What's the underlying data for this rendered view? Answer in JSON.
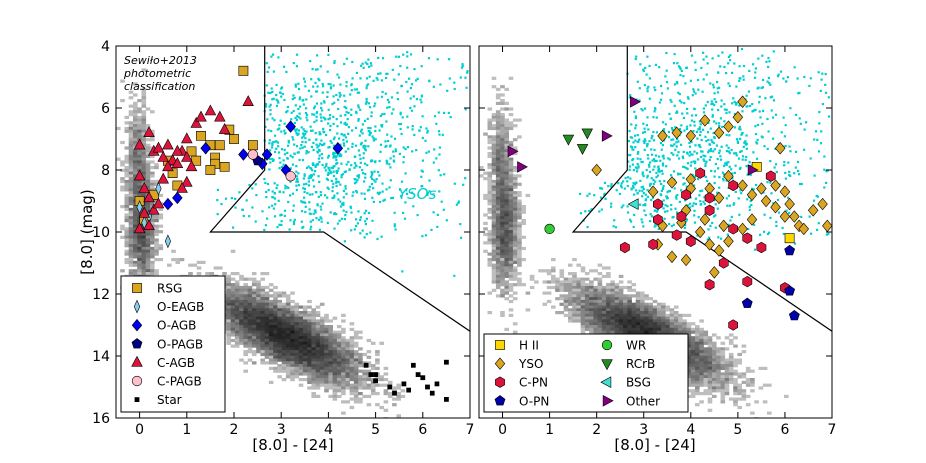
{
  "chart_data": [
    {
      "type": "scatter",
      "panel": "left",
      "xlabel": "[8.0] - [24]",
      "ylabel": "[8.0] (mag)",
      "xlim": [
        -0.5,
        7
      ],
      "ylim": [
        16,
        4
      ],
      "xticks": [
        0,
        1,
        2,
        3,
        4,
        5,
        6,
        7
      ],
      "yticks": [
        4,
        6,
        8,
        10,
        12,
        14,
        16
      ],
      "annotation_lines": [
        "Sewiło+2013",
        "photometric",
        "classification"
      ],
      "region_label": "YSOs",
      "legend_position": "lower-left",
      "series": [
        {
          "name": "RSG",
          "marker": "square",
          "color": "#DAA520",
          "points": [
            [
              2.2,
              4.8
            ],
            [
              0.6,
              7.7
            ],
            [
              0.7,
              8.1
            ],
            [
              1.1,
              7.4
            ],
            [
              1.2,
              7.7
            ],
            [
              1.3,
              6.9
            ],
            [
              1.5,
              7.2
            ],
            [
              1.6,
              7.6
            ],
            [
              1.7,
              7.2
            ],
            [
              1.8,
              7.9
            ],
            [
              2.0,
              7.0
            ],
            [
              2.4,
              7.2
            ],
            [
              0.8,
              8.5
            ],
            [
              0.0,
              9.0
            ],
            [
              0.1,
              9.6
            ],
            [
              0.3,
              8.8
            ],
            [
              1.6,
              7.8
            ],
            [
              1.5,
              8.0
            ],
            [
              1.9,
              6.7
            ]
          ]
        },
        {
          "name": "O-EAGB",
          "marker": "thin_diamond",
          "color": "#87CEEB",
          "points": [
            [
              0.0,
              9.2
            ],
            [
              0.1,
              9.7
            ],
            [
              0.2,
              9.5
            ],
            [
              0.6,
              10.3
            ],
            [
              0.4,
              8.6
            ]
          ]
        },
        {
          "name": "O-AGB",
          "marker": "diamond",
          "color": "#0000EE",
          "points": [
            [
              1.4,
              7.3
            ],
            [
              2.2,
              7.5
            ],
            [
              2.7,
              7.5
            ],
            [
              3.2,
              6.6
            ],
            [
              4.2,
              7.3
            ],
            [
              0.6,
              9.1
            ],
            [
              0.8,
              8.9
            ],
            [
              3.1,
              8.0
            ],
            [
              2.6,
              7.8
            ]
          ]
        },
        {
          "name": "O-PAGB",
          "marker": "pentagon",
          "color": "#000080",
          "points": [
            [
              2.5,
              7.7
            ]
          ]
        },
        {
          "name": "C-AGB",
          "marker": "triangle",
          "color": "#DC143C",
          "points": [
            [
              0.2,
              6.8
            ],
            [
              0.3,
              7.4
            ],
            [
              0.4,
              7.3
            ],
            [
              0.5,
              7.6
            ],
            [
              0.6,
              7.2
            ],
            [
              0.7,
              7.7
            ],
            [
              0.8,
              7.8
            ],
            [
              0.9,
              7.4
            ],
            [
              1.0,
              7.6
            ],
            [
              1.1,
              7.9
            ],
            [
              1.2,
              6.5
            ],
            [
              1.3,
              6.3
            ],
            [
              1.5,
              6.1
            ],
            [
              1.7,
              6.3
            ],
            [
              1.8,
              6.7
            ],
            [
              2.3,
              5.8
            ],
            [
              0.0,
              8.2
            ],
            [
              0.1,
              8.6
            ],
            [
              0.2,
              8.9
            ],
            [
              0.3,
              9.3
            ],
            [
              0.1,
              9.4
            ],
            [
              0.2,
              9.8
            ],
            [
              0.0,
              9.9
            ],
            [
              0.4,
              9.1
            ],
            [
              0.5,
              8.3
            ],
            [
              1.0,
              8.4
            ],
            [
              1.0,
              7.0
            ],
            [
              0.8,
              7.4
            ],
            [
              0.6,
              7.9
            ],
            [
              0.9,
              8.6
            ],
            [
              0.0,
              7.2
            ]
          ]
        },
        {
          "name": "C-PAGB",
          "marker": "circle",
          "color": "#FFC0CB",
          "points": [
            [
              2.4,
              7.5
            ],
            [
              3.2,
              8.2
            ]
          ]
        },
        {
          "name": "Star",
          "marker": "small_square",
          "color": "#000000",
          "points": [
            [
              4.8,
              14.3
            ],
            [
              4.9,
              14.6
            ],
            [
              5.0,
              14.8
            ],
            [
              5.0,
              14.6
            ],
            [
              5.3,
              15.0
            ],
            [
              5.4,
              15.2
            ],
            [
              5.6,
              14.9
            ],
            [
              5.8,
              14.3
            ],
            [
              5.9,
              14.6
            ],
            [
              6.0,
              14.7
            ],
            [
              6.1,
              15.0
            ],
            [
              6.2,
              15.2
            ],
            [
              6.3,
              14.9
            ],
            [
              6.5,
              14.2
            ],
            [
              6.5,
              15.4
            ],
            [
              5.7,
              15.1
            ]
          ]
        }
      ]
    },
    {
      "type": "scatter",
      "panel": "right",
      "xlabel": "[8.0] - [24]",
      "ylabel": "",
      "xlim": [
        -0.5,
        7
      ],
      "ylim": [
        16,
        4
      ],
      "xticks": [
        0,
        1,
        2,
        3,
        4,
        5,
        6,
        7
      ],
      "yticks": [
        4,
        6,
        8,
        10,
        12,
        14,
        16
      ],
      "legend_position": "lower-left",
      "series": [
        {
          "name": "H II",
          "marker": "square",
          "color": "#FFD700",
          "points": [
            [
              5.4,
              7.9
            ],
            [
              6.1,
              10.2
            ]
          ]
        },
        {
          "name": "YSO",
          "marker": "diamond",
          "color": "#DAA520",
          "points": [
            [
              4.3,
              6.4
            ],
            [
              4.6,
              6.8
            ],
            [
              4.8,
              6.6
            ],
            [
              5.0,
              6.3
            ],
            [
              5.1,
              5.8
            ],
            [
              5.9,
              7.3
            ],
            [
              3.4,
              6.9
            ],
            [
              3.7,
              6.8
            ],
            [
              4.0,
              6.9
            ],
            [
              2.0,
              8.0
            ],
            [
              3.2,
              8.7
            ],
            [
              3.6,
              8.4
            ],
            [
              4.0,
              8.3
            ],
            [
              4.4,
              8.6
            ],
            [
              4.6,
              8.9
            ],
            [
              4.8,
              8.2
            ],
            [
              5.1,
              8.5
            ],
            [
              5.3,
              8.8
            ],
            [
              5.5,
              8.6
            ],
            [
              5.6,
              9.0
            ],
            [
              5.8,
              8.5
            ],
            [
              6.0,
              8.7
            ],
            [
              6.1,
              9.1
            ],
            [
              6.2,
              9.5
            ],
            [
              6.3,
              9.8
            ],
            [
              6.6,
              9.3
            ],
            [
              6.8,
              9.1
            ],
            [
              6.9,
              9.8
            ],
            [
              6.4,
              9.9
            ],
            [
              6.0,
              9.5
            ],
            [
              5.8,
              9.2
            ],
            [
              5.3,
              9.6
            ],
            [
              5.1,
              9.9
            ],
            [
              4.8,
              10.3
            ],
            [
              4.6,
              10.6
            ],
            [
              4.4,
              10.4
            ],
            [
              4.2,
              10.0
            ],
            [
              3.9,
              9.3
            ],
            [
              4.0,
              8.6
            ],
            [
              3.4,
              9.8
            ],
            [
              3.3,
              10.4
            ],
            [
              3.6,
              10.8
            ],
            [
              4.5,
              11.3
            ],
            [
              3.9,
              10.9
            ],
            [
              4.3,
              9.6
            ],
            [
              4.7,
              9.8
            ],
            [
              3.8,
              9.7
            ]
          ]
        },
        {
          "name": "C-PN",
          "marker": "hexagon",
          "color": "#DC143C",
          "points": [
            [
              5.7,
              8.2
            ],
            [
              4.9,
              8.5
            ],
            [
              4.2,
              8.1
            ],
            [
              3.9,
              8.8
            ],
            [
              3.3,
              9.1
            ],
            [
              3.3,
              9.6
            ],
            [
              3.8,
              9.5
            ],
            [
              4.4,
              9.3
            ],
            [
              4.9,
              9.9
            ],
            [
              5.2,
              10.2
            ],
            [
              5.5,
              10.5
            ],
            [
              3.7,
              10.1
            ],
            [
              4.0,
              10.3
            ],
            [
              3.2,
              10.4
            ],
            [
              2.6,
              10.5
            ],
            [
              4.7,
              11.0
            ],
            [
              5.2,
              11.6
            ],
            [
              4.4,
              11.7
            ],
            [
              6.0,
              11.8
            ],
            [
              4.9,
              13.0
            ],
            [
              4.4,
              8.9
            ]
          ]
        },
        {
          "name": "O-PN",
          "marker": "pentagon",
          "color": "#0000AA",
          "points": [
            [
              6.1,
              10.6
            ],
            [
              6.1,
              11.9
            ],
            [
              5.2,
              12.3
            ],
            [
              6.2,
              12.7
            ]
          ]
        },
        {
          "name": "WR",
          "marker": "circle",
          "color": "#32CD32",
          "points": [
            [
              1.0,
              9.9
            ]
          ]
        },
        {
          "name": "RCrB",
          "marker": "triangle_down",
          "color": "#228B22",
          "points": [
            [
              1.4,
              7.0
            ],
            [
              1.8,
              6.8
            ],
            [
              1.7,
              7.3
            ]
          ]
        },
        {
          "name": "BSG",
          "marker": "triangle_left",
          "color": "#40E0D0",
          "points": [
            [
              2.8,
              9.1
            ]
          ]
        },
        {
          "name": "Other",
          "marker": "triangle_right",
          "color": "#800080",
          "points": [
            [
              0.2,
              7.4
            ],
            [
              0.4,
              7.9
            ],
            [
              2.2,
              6.9
            ],
            [
              2.8,
              5.8
            ],
            [
              5.3,
              8.0
            ]
          ]
        }
      ]
    }
  ]
}
